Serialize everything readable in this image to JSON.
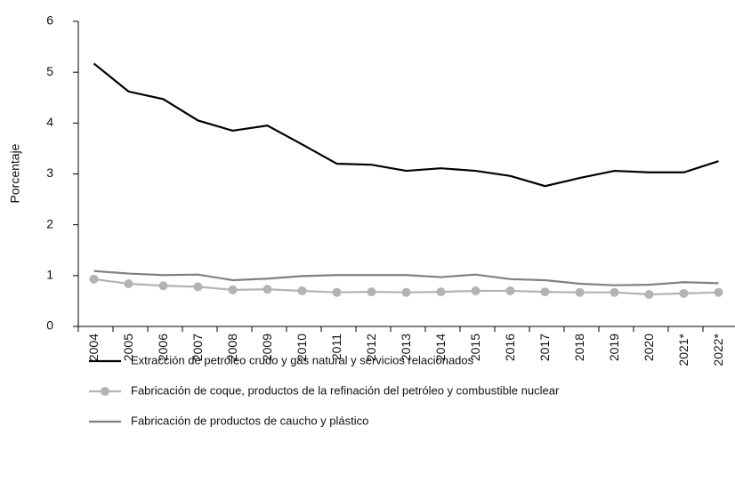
{
  "chart_data": {
    "type": "line",
    "y_label": "Porcentaje",
    "categories": [
      "2004",
      "2005",
      "2006",
      "2007",
      "2008",
      "2009",
      "2010",
      "2011",
      "2012",
      "2013",
      "2014",
      "2015",
      "2016",
      "2017",
      "2018",
      "2019",
      "2020",
      "2021*",
      "2022*"
    ],
    "series": [
      {
        "name": "Extracción de petróleo crudo y gas natural y servicios relacionados",
        "color": "#000000",
        "marker": false,
        "values": [
          5.17,
          4.62,
          4.47,
          4.05,
          3.85,
          3.95,
          3.58,
          3.2,
          3.18,
          3.06,
          3.11,
          3.06,
          2.96,
          2.76,
          2.92,
          3.06,
          3.03,
          3.03,
          3.25
        ]
      },
      {
        "name": "Fabricación de coque, productos de la refinación del petróleo y combustible nuclear",
        "color": "#b3b3b3",
        "marker": true,
        "values": [
          0.93,
          0.84,
          0.8,
          0.78,
          0.72,
          0.73,
          0.7,
          0.67,
          0.68,
          0.67,
          0.68,
          0.7,
          0.7,
          0.68,
          0.67,
          0.67,
          0.63,
          0.65,
          0.67
        ]
      },
      {
        "name": "Fabricación de productos de caucho y plástico",
        "color": "#808080",
        "marker": false,
        "values": [
          1.09,
          1.04,
          1.01,
          1.02,
          0.91,
          0.94,
          0.99,
          1.01,
          1.01,
          1.01,
          0.97,
          1.02,
          0.93,
          0.91,
          0.84,
          0.81,
          0.82,
          0.87,
          0.85
        ]
      }
    ],
    "ylim": [
      0,
      6
    ],
    "yticks": [
      0,
      1,
      2,
      3,
      4,
      5,
      6
    ],
    "grid": false
  }
}
